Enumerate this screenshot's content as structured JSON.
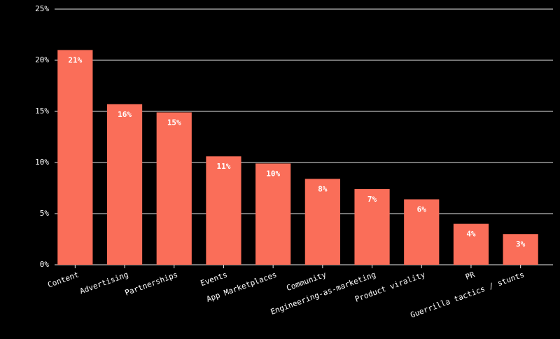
{
  "chart_data": {
    "type": "bar",
    "categories": [
      "Content",
      "Advertising",
      "Partnerships",
      "Events",
      "App Marketplaces",
      "Community",
      "Engineering-as-marketing",
      "Product virality",
      "PR",
      "Guerrilla tactics / stunts"
    ],
    "values": [
      21,
      15.7,
      14.9,
      10.6,
      9.9,
      8.4,
      7.4,
      6.4,
      4,
      3
    ],
    "value_labels": [
      "21%",
      "16%",
      "15%",
      "11%",
      "10%",
      "8%",
      "7%",
      "6%",
      "4%",
      "3%"
    ],
    "color": "#fa6e59",
    "ylim": [
      0,
      25
    ],
    "yticks": [
      {
        "value": 0,
        "label": "0%"
      },
      {
        "value": 5,
        "label": "5%"
      },
      {
        "value": 10,
        "label": "10%"
      },
      {
        "value": 15,
        "label": "15%"
      },
      {
        "value": 20,
        "label": "20%"
      },
      {
        "value": 25,
        "label": "25%"
      }
    ],
    "grid": true
  }
}
